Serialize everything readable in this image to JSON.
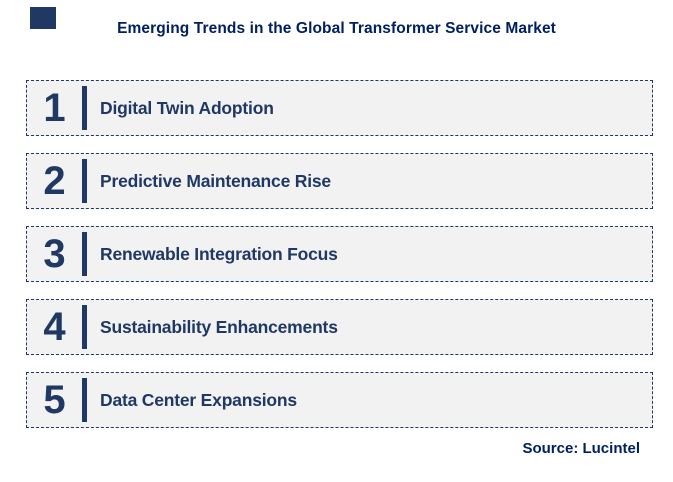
{
  "header": {
    "title": "Emerging Trends in the Global Transformer Service Market"
  },
  "trends": [
    {
      "number": "1",
      "label": "Digital Twin Adoption"
    },
    {
      "number": "2",
      "label": "Predictive Maintenance Rise"
    },
    {
      "number": "3",
      "label": "Renewable Integration Focus"
    },
    {
      "number": "4",
      "label": "Sustainability Enhancements"
    },
    {
      "number": "5",
      "label": "Data Center Expansions"
    }
  ],
  "footer": {
    "source": "Source: Lucintel"
  },
  "colors": {
    "navy": "#1F3864",
    "title_navy": "#002060",
    "card_background": "#F2F2F2",
    "card_border": "#1F3864",
    "page_background": "#FFFFFF"
  }
}
